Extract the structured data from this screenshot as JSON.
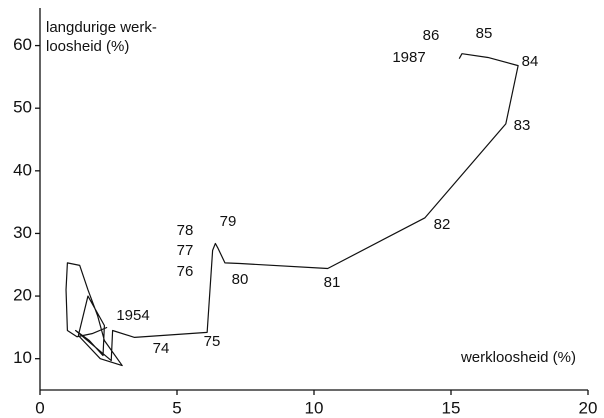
{
  "chart_data": {
    "type": "line",
    "ylabel": [
      "langdurige werk-",
      "loosheid (%)"
    ],
    "xlabel": "werkloosheid (%)",
    "xlim": [
      0,
      20
    ],
    "xticks": [
      0,
      5,
      10,
      15,
      20
    ],
    "ylim": [
      5,
      66
    ],
    "yticks": [
      10,
      20,
      30,
      40,
      50,
      60
    ],
    "grid": false,
    "color": "#111111",
    "x": [
      2.45,
      1.9,
      1.35,
      1.0,
      0.95,
      1.0,
      1.45,
      1.75,
      2.1,
      2.35,
      3.0,
      2.2,
      1.4,
      1.75,
      2.35,
      2.3,
      1.8,
      1.3,
      2.6,
      2.65,
      3.45,
      6.1,
      6.3,
      6.4,
      6.5,
      6.75,
      7.3,
      10.5,
      14.05,
      17.0,
      17.45,
      16.35,
      15.4,
      15.3
    ],
    "values": [
      15,
      14,
      13.5,
      14.5,
      21,
      25.3,
      24.9,
      21,
      16.9,
      12.9,
      8.9,
      10,
      13.7,
      20,
      15.3,
      10.5,
      12.9,
      14.5,
      9.7,
      14.5,
      13.4,
      14.2,
      27.3,
      28.4,
      27.6,
      25.3,
      25.2,
      24.4,
      32.5,
      47.5,
      56.8,
      58.1,
      58.7,
      57.9
    ],
    "point_labels": [
      "1954",
      null,
      null,
      null,
      null,
      null,
      null,
      null,
      null,
      null,
      null,
      null,
      null,
      null,
      null,
      null,
      null,
      null,
      null,
      null,
      "74",
      "75",
      "76",
      "77",
      "78",
      "79",
      "80",
      "81",
      "82",
      "83",
      "84",
      "85",
      "86",
      "1987"
    ]
  }
}
